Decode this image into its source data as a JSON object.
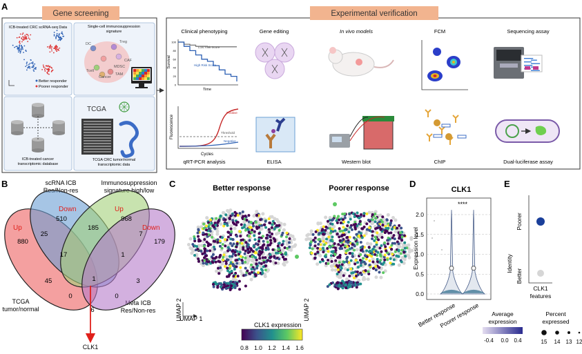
{
  "panels": {
    "A": "A",
    "B": "B",
    "C": "C",
    "D": "D",
    "E": "E"
  },
  "gene_screening": {
    "header": "Gene screening",
    "scrna_title": "ICB-treated CRC scRNA-seq Data",
    "legend_better": "Better responder",
    "legend_poorer": "Poorer responder",
    "immuno_title_1": "Single-cell immunosuppression",
    "immuno_title_2": "signature",
    "cell_labels": [
      "DC",
      "Treg",
      "MDSC",
      "CAF",
      "TAM",
      "Tcell",
      "Cancer"
    ],
    "db_caption_1": "ICB-treated cancer",
    "db_caption_2": "transcriptomic database",
    "tcga_label": "TCGA",
    "tcga_caption_1": "TCGA CRC tumor/normal",
    "tcga_caption_2": "transcriptomic data"
  },
  "experimental": {
    "header": "Experimental verification",
    "items": [
      {
        "label": "Clinical phenotyping"
      },
      {
        "label": "Gene editing"
      },
      {
        "label": "In vivo models"
      },
      {
        "label": "FCM"
      },
      {
        "label": "Sequencing assay"
      },
      {
        "label": "qRT-PCR analysis"
      },
      {
        "label": "ELISA"
      },
      {
        "label": "Western blot"
      },
      {
        "label": "ChIP"
      },
      {
        "label": "Dual-luciferase assay"
      }
    ],
    "km": {
      "survival": "Survival",
      "time": "Time",
      "low": "Low Risk Score",
      "high": "High Risk Score",
      "ticks": [
        "100",
        "80",
        "60",
        "40",
        "20",
        "0"
      ]
    },
    "qpcr": {
      "ylabel": "Fluorescence",
      "xlabel": "Cycles",
      "positive": "Positive",
      "threshold": "Threshold",
      "negative": "Negative"
    }
  },
  "venn": {
    "sets": [
      {
        "name_1": "scRNA ICB",
        "name_2": "Res/Non-res",
        "dir": "Down"
      },
      {
        "name_1": "Immunosuppression",
        "name_2": "signature high/low",
        "dir": "Up"
      },
      {
        "name_1": "TCGA",
        "name_2": "tumor/normal",
        "dir": "Up"
      },
      {
        "name_1": "Meta ICB",
        "name_2": "Res/Non-res",
        "dir": "Down"
      }
    ],
    "counts": [
      "880",
      "510",
      "968",
      "179",
      "25",
      "185",
      "7",
      "17",
      "1",
      "45",
      "1",
      "3",
      "0",
      "0",
      "6"
    ],
    "result": "CLK1"
  },
  "umap": {
    "better_title": "Better response",
    "poorer_title": "Poorer response",
    "axis1": "UMAP 1",
    "axis2": "UMAP 2",
    "colorbar_title": "CLK1 expression",
    "colorbar_ticks": [
      "0.8",
      "1.0",
      "1.2",
      "1.4",
      "1.6"
    ]
  },
  "violin": {
    "title": "CLK1",
    "ylabel": "Expression level",
    "yticks": [
      "2.0",
      "1.5",
      "1.0",
      "0.5",
      "0.0"
    ],
    "categories": [
      "Better response",
      "Poorer response"
    ],
    "signif": "****"
  },
  "dot": {
    "ylabel": "Identity",
    "rows": [
      "Poorer",
      "Better"
    ],
    "xlabel_1": "CLK1",
    "xlabel_2": "features",
    "avg_title_1": "Average",
    "avg_title_2": "expression",
    "avg_ticks": [
      "-0.4",
      "0.0",
      "0.4"
    ],
    "pct_title_1": "Percent",
    "pct_title_2": "expressed",
    "pct_ticks": [
      "15",
      "14",
      "13",
      "12"
    ]
  },
  "colors": {
    "accent_header": "#f2b48f",
    "better_blue": "#1f4e9c",
    "poorer_red": "#d62728",
    "arrow": "#e0201b",
    "venn_red": "#f08080",
    "venn_blue": "#6a9fd4",
    "venn_green": "#a4d07a",
    "venn_purple": "#b57cc9"
  },
  "chart_data": [
    {
      "type": "line",
      "title": "Clinical phenotyping",
      "xlabel": "Time",
      "ylabel": "Survival",
      "ylim": [
        0,
        100
      ],
      "series": [
        {
          "name": "Low Risk Score",
          "x": [
            0,
            1,
            2,
            3,
            4,
            5,
            6,
            7,
            8,
            9,
            10
          ],
          "values": [
            100,
            95,
            93,
            90,
            90,
            89,
            89,
            89,
            89,
            89,
            89
          ]
        },
        {
          "name": "High Risk Score",
          "x": [
            0,
            1,
            2,
            3,
            4,
            5,
            6,
            7,
            8,
            9,
            10
          ],
          "values": [
            100,
            90,
            80,
            70,
            60,
            55,
            45,
            35,
            25,
            20,
            8
          ]
        }
      ]
    },
    {
      "type": "violin",
      "title": "CLK1",
      "xlabel": "",
      "ylabel": "Expression level",
      "ylim": [
        0,
        2.2
      ],
      "categories": [
        "Better response",
        "Poorer response"
      ]
    },
    {
      "type": "scatter",
      "title": "",
      "xlabel": "CLK1 features",
      "ylabel": "Identity",
      "categories": [
        "Better",
        "Poorer"
      ],
      "series": [
        {
          "name": "Average expression",
          "values": [
            -0.4,
            0.4
          ]
        },
        {
          "name": "Percent expressed",
          "values": [
            13,
            15
          ]
        }
      ]
    }
  ]
}
